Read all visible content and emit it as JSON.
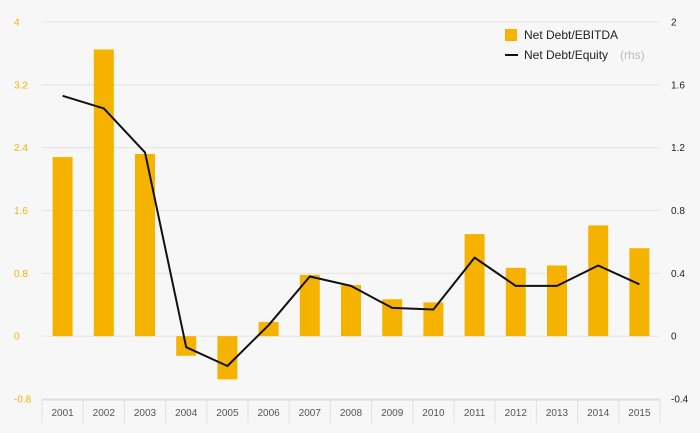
{
  "colors": {
    "bar": "#f5b300",
    "line": "#111111",
    "left_axis_text": "#f5b300",
    "right_axis_text": "#222222",
    "x_axis_text": "#555555",
    "grid": "#e4e4e4",
    "background": "#f7f7f7"
  },
  "legend": {
    "placement": "top-right",
    "bar_label": "Net Debt/EBITDA",
    "line_label": "Net Debt/Equity",
    "line_label_suffix": "(rhs)"
  },
  "chart_data": {
    "type": "bar",
    "title": "",
    "xlabel": "",
    "ylabel": "",
    "grid": "horizontal",
    "categories": [
      "2001",
      "2002",
      "2003",
      "2004",
      "2005",
      "2006",
      "2007",
      "2008",
      "2009",
      "2010",
      "2011",
      "2012",
      "2013",
      "2014",
      "2015"
    ],
    "ylim": [
      -0.8,
      4
    ],
    "yticks": [
      "-0.8",
      "0",
      "0.8",
      "1.6",
      "2.4",
      "3.2",
      "4"
    ],
    "y2lim": [
      -0.4,
      2
    ],
    "y2ticks": [
      "-0.4",
      "0",
      "0.4",
      "0.8",
      "1.2",
      "1.6",
      "2"
    ],
    "series": [
      {
        "name": "Net Debt/EBITDA",
        "type": "bar",
        "axis": "left",
        "values": [
          2.28,
          3.65,
          2.32,
          -0.25,
          -0.55,
          0.18,
          0.78,
          0.65,
          0.47,
          0.43,
          1.3,
          0.87,
          0.9,
          1.41,
          1.12
        ]
      },
      {
        "name": "Net Debt/Equity",
        "type": "line",
        "axis": "right",
        "values": [
          1.53,
          1.45,
          1.17,
          -0.07,
          -0.19,
          0.07,
          0.38,
          0.32,
          0.18,
          0.17,
          0.5,
          0.32,
          0.32,
          0.45,
          0.33
        ]
      }
    ]
  }
}
